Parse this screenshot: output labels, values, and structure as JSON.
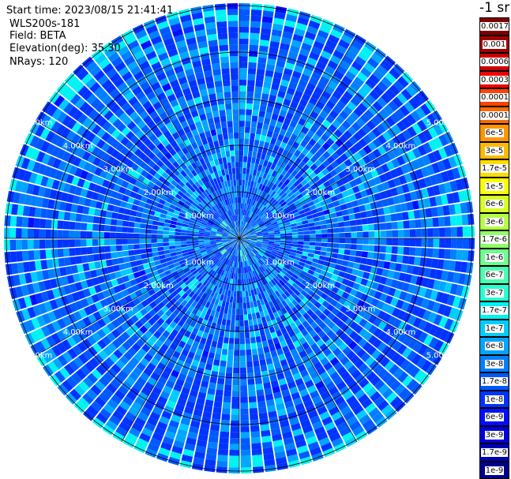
{
  "header": {
    "start_time": "Start time: 2023/08/15 21:41:41",
    "instrument": "WLS200s-181",
    "field": "Field: BETA",
    "elevation": "Elevation(deg): 35.30",
    "nrays": "NRays: 120"
  },
  "units_label": "-1 sr",
  "chart_data": {
    "type": "heatmap",
    "projection": "polar-ppi",
    "field": "BETA",
    "n_rays": 120,
    "range_rings_km": [
      1.0,
      2.0,
      3.0,
      4.0,
      5.0
    ],
    "ring_labels": [
      "1.00km",
      "2.00km",
      "3.00km",
      "4.00km",
      "5.00km"
    ],
    "max_range_km": 5.0,
    "colorbar": {
      "levels": [
        "0.0017",
        "0.001",
        "0.0006",
        "0.0003",
        "0.00017",
        "0.0001",
        "6e-5",
        "3e-5",
        "1.7e-5",
        "1e-5",
        "6e-6",
        "3e-6",
        "1.7e-6",
        "1e-6",
        "6e-7",
        "3e-7",
        "1.7e-7",
        "1e-7",
        "6e-8",
        "3e-8",
        "1.7e-8",
        "1e-8",
        "6e-9",
        "3e-9",
        "1.7e-9",
        "1e-9"
      ],
      "colors": [
        "#7f0000",
        "#a30000",
        "#cc0000",
        "#f00000",
        "#ff4400",
        "#ff6a00",
        "#ff9400",
        "#ffb900",
        "#ffdc00",
        "#f9ff00",
        "#d6ff22",
        "#b3ff44",
        "#8fff68",
        "#6cff8b",
        "#49ffad",
        "#26ffd1",
        "#00f2f2",
        "#00ccff",
        "#00a6ff",
        "#0080ff",
        "#0059ff",
        "#0033ff",
        "#000dff",
        "#0000dc",
        "#0000b4",
        "#00008b"
      ]
    },
    "dominant_value_range": [
      "6e-9",
      "6e-8"
    ]
  }
}
